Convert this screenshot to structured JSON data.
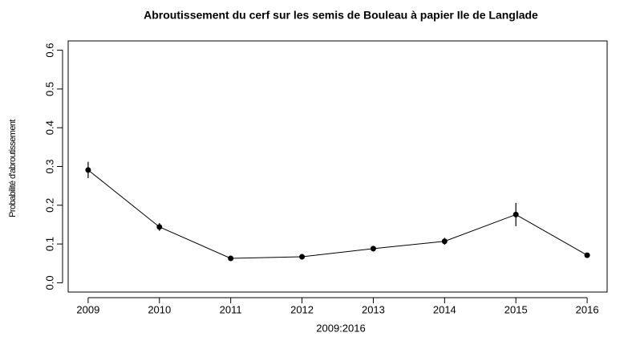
{
  "chart_data": {
    "type": "line",
    "title": "Abroutissement du cerf sur les semis de Bouleau à papier Ile de Langlade",
    "x_label": "2009:2016",
    "y_label": "Probabilité d'abroutissement",
    "x": [
      2009,
      2010,
      2011,
      2012,
      2013,
      2014,
      2015,
      2016
    ],
    "series": [
      {
        "color": "#000000",
        "values": [
          0.291,
          0.144,
          0.063,
          0.067,
          0.088,
          0.107,
          0.176,
          0.071
        ],
        "errors": [
          0.021,
          0.01,
          0.005,
          0.007,
          0.007,
          0.009,
          0.03,
          0.004
        ]
      }
    ],
    "xlim": [
      2008.72,
      2016.28
    ],
    "xticks": [
      2009,
      2010,
      2011,
      2012,
      2013,
      2014,
      2015,
      2016
    ],
    "ylim": [
      -0.024,
      0.624
    ],
    "yticks": [
      {
        "value": 0,
        "label": "0.0"
      },
      {
        "value": 0.1,
        "label": "0.1"
      },
      {
        "value": 0.2,
        "label": "0.2"
      },
      {
        "value": 0.3,
        "label": "0.3"
      },
      {
        "value": 0.4,
        "label": "0.4"
      },
      {
        "value": 0.5,
        "label": "0.5"
      },
      {
        "value": 0.6,
        "label": "0.6"
      }
    ]
  }
}
